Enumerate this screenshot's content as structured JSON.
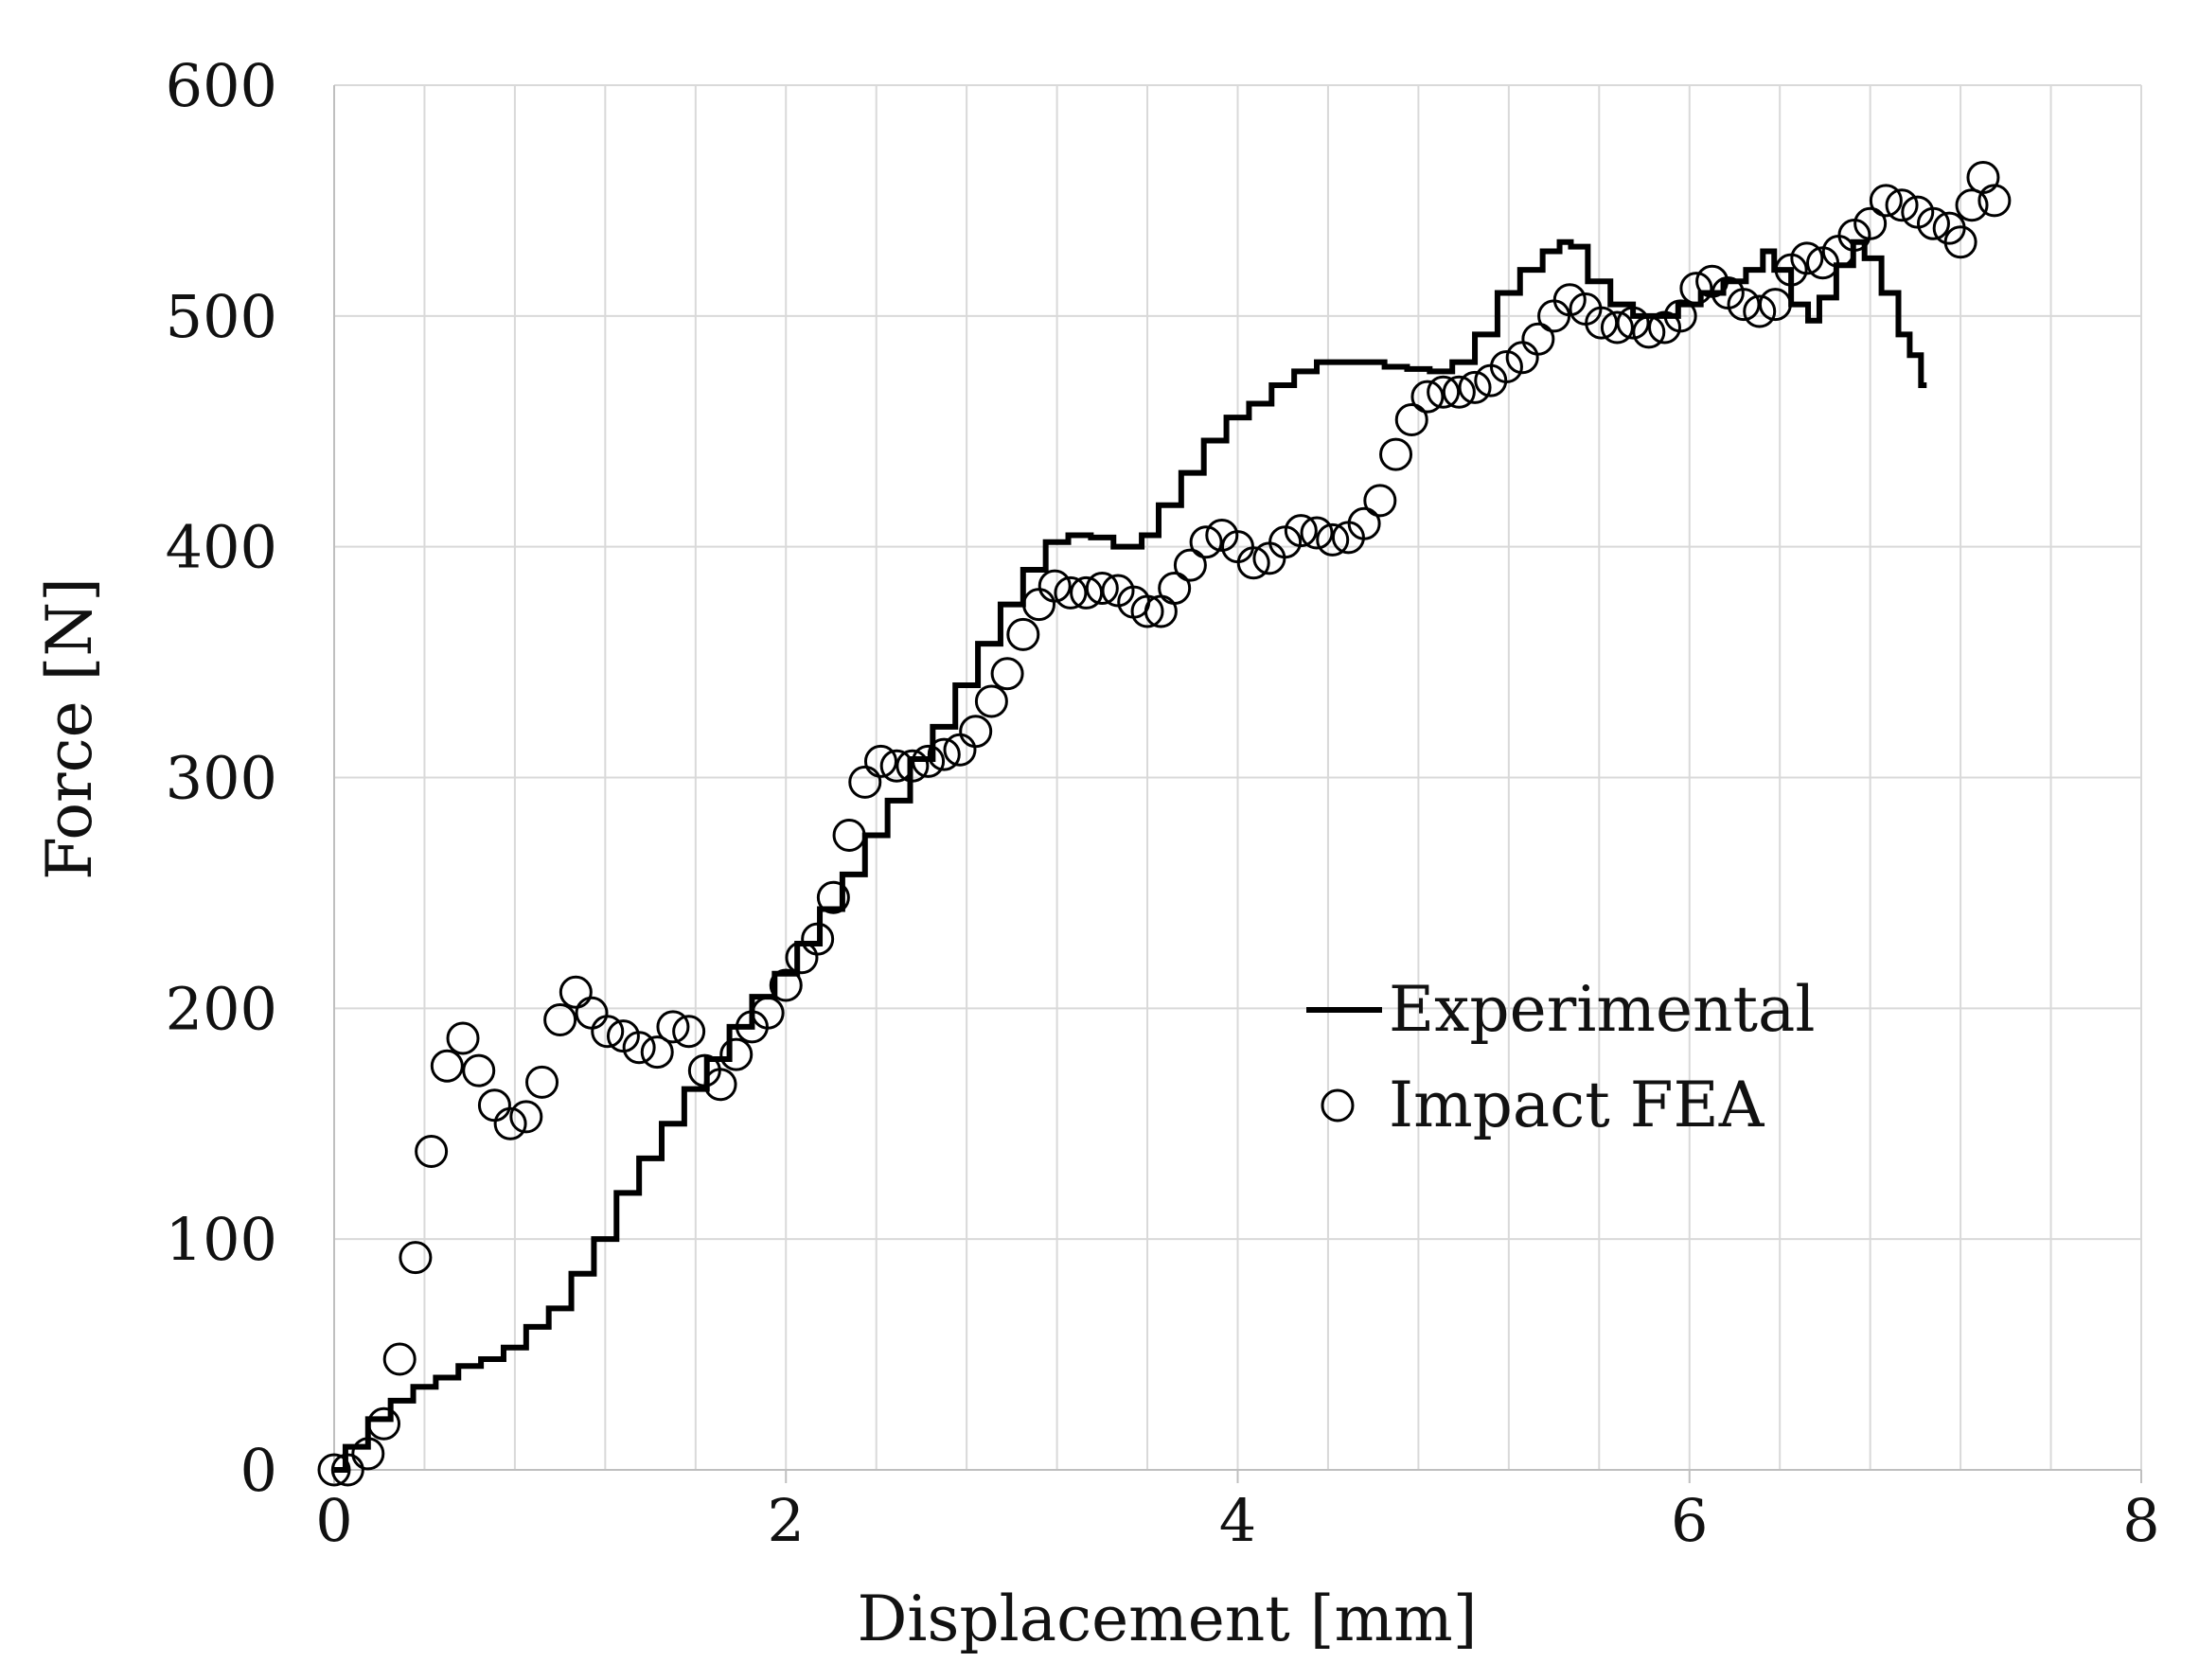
{
  "chart_data": {
    "type": "scatter",
    "title": "",
    "xlabel": "Displacement [mm]",
    "ylabel": "Force [N]",
    "xlim": [
      0,
      8
    ],
    "ylim": [
      0,
      600
    ],
    "x_major_ticks": [
      0,
      2,
      4,
      6,
      8
    ],
    "x_minor_step": 0.4,
    "y_ticks": [
      0,
      100,
      200,
      300,
      400,
      500,
      600
    ],
    "x_tick_labels": [
      "0",
      "2",
      "4",
      "6",
      "8"
    ],
    "y_tick_labels": [
      "0",
      "100",
      "200",
      "300",
      "400",
      "500",
      "600"
    ],
    "grid": true,
    "legend_position": "center-right",
    "series": [
      {
        "name": "Experimental",
        "style": "line",
        "color": "#000000",
        "x": [
          0.0,
          0.1,
          0.2,
          0.3,
          0.4,
          0.5,
          0.6,
          0.7,
          0.8,
          0.9,
          1.0,
          1.1,
          1.2,
          1.3,
          1.4,
          1.5,
          1.6,
          1.7,
          1.8,
          1.9,
          2.0,
          2.1,
          2.2,
          2.3,
          2.4,
          2.5,
          2.6,
          2.7,
          2.8,
          2.9,
          3.0,
          3.1,
          3.2,
          3.3,
          3.4,
          3.5,
          3.55,
          3.6,
          3.7,
          3.8,
          3.9,
          4.0,
          4.1,
          4.2,
          4.3,
          4.4,
          4.5,
          4.6,
          4.7,
          4.8,
          4.9,
          5.0,
          5.1,
          5.2,
          5.3,
          5.4,
          5.45,
          5.5,
          5.6,
          5.7,
          5.8,
          5.9,
          6.0,
          6.1,
          6.2,
          6.3,
          6.35,
          6.4,
          6.5,
          6.55,
          6.6,
          6.7,
          6.75,
          6.8,
          6.9,
          6.95,
          7.0,
          7.05
        ],
        "y": [
          0,
          10,
          22,
          30,
          36,
          40,
          45,
          48,
          53,
          62,
          70,
          85,
          100,
          120,
          135,
          150,
          165,
          178,
          192,
          205,
          215,
          228,
          243,
          258,
          275,
          290,
          308,
          322,
          340,
          358,
          375,
          390,
          402,
          405,
          404,
          400,
          400,
          405,
          418,
          432,
          446,
          456,
          462,
          470,
          476,
          480,
          480,
          480,
          478,
          477,
          476,
          480,
          492,
          510,
          520,
          528,
          532,
          530,
          515,
          505,
          500,
          500,
          505,
          510,
          515,
          520,
          528,
          520,
          505,
          498,
          508,
          522,
          532,
          525,
          510,
          492,
          483,
          470
        ]
      },
      {
        "name": "Impact FEA",
        "style": "markers",
        "marker": "open-circle",
        "color": "#000000",
        "x": [
          0.0,
          0.06,
          0.15,
          0.22,
          0.29,
          0.36,
          0.43,
          0.5,
          0.57,
          0.64,
          0.71,
          0.78,
          0.85,
          0.92,
          1.0,
          1.07,
          1.14,
          1.21,
          1.28,
          1.35,
          1.43,
          1.5,
          1.57,
          1.64,
          1.71,
          1.78,
          1.85,
          1.92,
          2.0,
          2.07,
          2.14,
          2.21,
          2.28,
          2.35,
          2.42,
          2.49,
          2.56,
          2.63,
          2.7,
          2.77,
          2.84,
          2.91,
          2.98,
          3.05,
          3.12,
          3.19,
          3.26,
          3.33,
          3.4,
          3.47,
          3.54,
          3.6,
          3.66,
          3.72,
          3.79,
          3.86,
          3.93,
          4.0,
          4.07,
          4.14,
          4.21,
          4.28,
          4.35,
          4.42,
          4.49,
          4.56,
          4.63,
          4.7,
          4.77,
          4.84,
          4.91,
          4.98,
          5.05,
          5.12,
          5.19,
          5.26,
          5.33,
          5.4,
          5.47,
          5.54,
          5.61,
          5.68,
          5.75,
          5.82,
          5.89,
          5.96,
          6.03,
          6.1,
          6.17,
          6.24,
          6.31,
          6.38,
          6.45,
          6.52,
          6.59,
          6.66,
          6.73,
          6.8,
          6.87,
          6.94,
          7.01,
          7.08,
          7.15,
          7.2,
          7.25,
          7.3,
          7.35
        ],
        "y": [
          0,
          0,
          7,
          20,
          48,
          92,
          138,
          175,
          187,
          173,
          158,
          150,
          153,
          168,
          195,
          207,
          198,
          190,
          188,
          183,
          181,
          192,
          190,
          173,
          167,
          180,
          192,
          198,
          210,
          222,
          230,
          248,
          275,
          298,
          307,
          305,
          305,
          307,
          310,
          312,
          320,
          333,
          345,
          362,
          375,
          383,
          380,
          380,
          382,
          381,
          376,
          372,
          372,
          382,
          392,
          402,
          405,
          400,
          393,
          395,
          402,
          407,
          406,
          403,
          404,
          410,
          420,
          440,
          455,
          465,
          467,
          467,
          469,
          472,
          478,
          482,
          490,
          500,
          507,
          503,
          497,
          495,
          497,
          493,
          495,
          500,
          512,
          515,
          510,
          505,
          502,
          505,
          520,
          525,
          523,
          528,
          535,
          540,
          550,
          548,
          545,
          540,
          538,
          532,
          548,
          560,
          550
        ]
      }
    ]
  }
}
